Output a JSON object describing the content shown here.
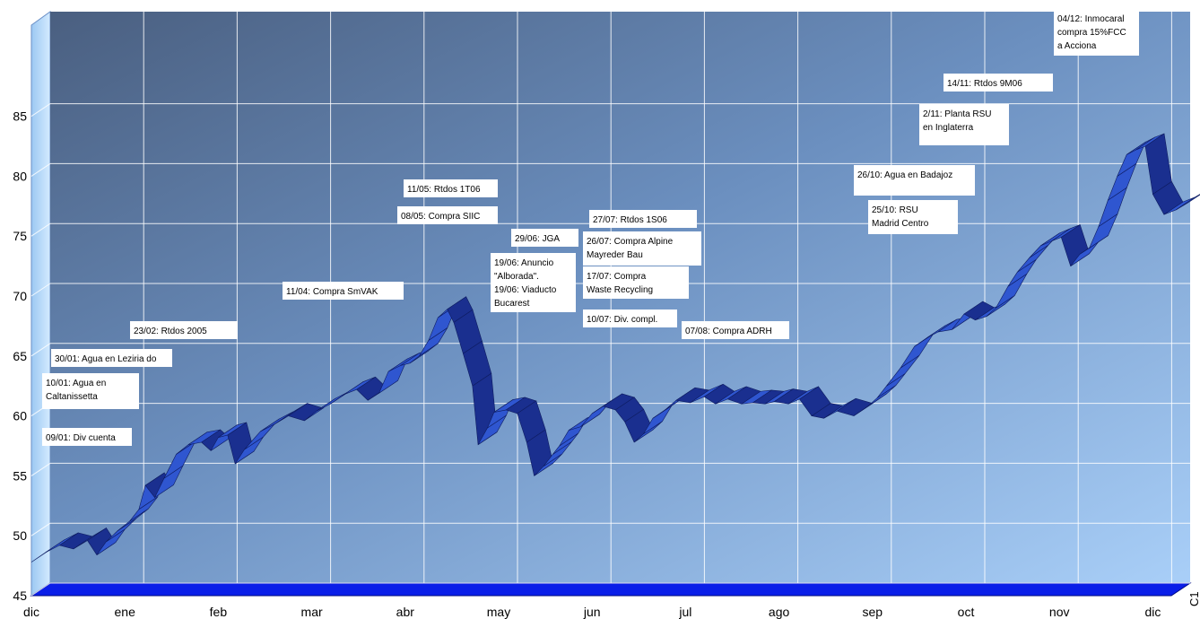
{
  "chart_data": {
    "type": "line",
    "title": "",
    "xlabel": "",
    "ylabel": "",
    "x_ticks": [
      "dic",
      "ene",
      "feb",
      "mar",
      "abr",
      "may",
      "jun",
      "jul",
      "ago",
      "sep",
      "oct",
      "nov",
      "dic"
    ],
    "y_ticks": [
      45,
      50,
      55,
      60,
      65,
      70,
      75,
      80,
      85
    ],
    "ylim": [
      45,
      85
    ],
    "grid": true,
    "series": [
      {
        "name": "C1",
        "color": "#2a4fc4",
        "points": [
          [
            0.0,
            47.8
          ],
          [
            0.15,
            48.6
          ],
          [
            0.3,
            49.2
          ],
          [
            0.45,
            48.9
          ],
          [
            0.6,
            49.6
          ],
          [
            0.7,
            48.4
          ],
          [
            0.8,
            49.5
          ],
          [
            0.92,
            50.4
          ],
          [
            1.05,
            51.2
          ],
          [
            1.15,
            52.2
          ],
          [
            1.22,
            54.2
          ],
          [
            1.32,
            53.2
          ],
          [
            1.42,
            54.8
          ],
          [
            1.55,
            56.8
          ],
          [
            1.68,
            57.6
          ],
          [
            1.82,
            57.8
          ],
          [
            1.92,
            57.1
          ],
          [
            2.0,
            58.2
          ],
          [
            2.1,
            58.4
          ],
          [
            2.18,
            56.0
          ],
          [
            2.28,
            57.2
          ],
          [
            2.45,
            58.7
          ],
          [
            2.6,
            59.3
          ],
          [
            2.75,
            60.0
          ],
          [
            2.92,
            59.6
          ],
          [
            3.05,
            60.4
          ],
          [
            3.2,
            61.0
          ],
          [
            3.35,
            61.8
          ],
          [
            3.48,
            62.2
          ],
          [
            3.6,
            61.3
          ],
          [
            3.72,
            61.9
          ],
          [
            3.82,
            63.7
          ],
          [
            3.95,
            64.2
          ],
          [
            4.05,
            64.4
          ],
          [
            4.15,
            65.0
          ],
          [
            4.25,
            66.3
          ],
          [
            4.35,
            68.2
          ],
          [
            4.45,
            68.9
          ],
          [
            4.52,
            67.8
          ],
          [
            4.62,
            65.2
          ],
          [
            4.72,
            62.5
          ],
          [
            4.78,
            57.6
          ],
          [
            4.88,
            59.0
          ],
          [
            4.95,
            60.3
          ],
          [
            5.08,
            60.5
          ],
          [
            5.2,
            60.2
          ],
          [
            5.3,
            57.8
          ],
          [
            5.38,
            55.0
          ],
          [
            5.48,
            55.8
          ],
          [
            5.58,
            56.8
          ],
          [
            5.65,
            57.5
          ],
          [
            5.75,
            58.8
          ],
          [
            5.88,
            59.1
          ],
          [
            6.0,
            60.2
          ],
          [
            6.12,
            60.8
          ],
          [
            6.25,
            60.5
          ],
          [
            6.35,
            59.5
          ],
          [
            6.45,
            57.8
          ],
          [
            6.55,
            58.5
          ],
          [
            6.65,
            59.8
          ],
          [
            6.78,
            60.5
          ],
          [
            6.9,
            61.3
          ],
          [
            7.05,
            61.1
          ],
          [
            7.2,
            61.6
          ],
          [
            7.32,
            61.0
          ],
          [
            7.45,
            61.4
          ],
          [
            7.6,
            61.0
          ],
          [
            7.72,
            61.1
          ],
          [
            7.85,
            61.0
          ],
          [
            7.95,
            61.2
          ],
          [
            8.1,
            61.0
          ],
          [
            8.22,
            61.4
          ],
          [
            8.35,
            60.0
          ],
          [
            8.48,
            59.8
          ],
          [
            8.62,
            60.4
          ],
          [
            8.8,
            60.0
          ],
          [
            8.95,
            60.8
          ],
          [
            9.05,
            61.5
          ],
          [
            9.15,
            62.5
          ],
          [
            9.3,
            64.0
          ],
          [
            9.45,
            65.8
          ],
          [
            9.58,
            66.5
          ],
          [
            9.7,
            67.0
          ],
          [
            9.85,
            67.2
          ],
          [
            9.98,
            68.5
          ],
          [
            10.1,
            68.0
          ],
          [
            10.22,
            68.3
          ],
          [
            10.32,
            69.0
          ],
          [
            10.45,
            70.8
          ],
          [
            10.55,
            72.0
          ],
          [
            10.68,
            73.2
          ],
          [
            10.8,
            74.2
          ],
          [
            10.92,
            74.6
          ],
          [
            11.02,
            74.9
          ],
          [
            11.12,
            72.5
          ],
          [
            11.22,
            73.5
          ],
          [
            11.32,
            74.0
          ],
          [
            11.42,
            75.8
          ],
          [
            11.52,
            78.0
          ],
          [
            11.62,
            80.0
          ],
          [
            11.72,
            81.8
          ],
          [
            11.82,
            82.2
          ],
          [
            11.92,
            82.5
          ],
          [
            12.0,
            78.5
          ],
          [
            12.12,
            76.8
          ],
          [
            12.25,
            77.2
          ],
          [
            12.38,
            77.8
          ]
        ]
      }
    ],
    "annotations": [
      {
        "lines": [
          "09/01: Div cuenta"
        ]
      },
      {
        "lines": [
          "10/01:  Agua en",
          "Caltanissetta"
        ]
      },
      {
        "lines": [
          "30/01: Agua en Leziria do"
        ]
      },
      {
        "lines": [
          "23/02: Rtdos 2005"
        ]
      },
      {
        "lines": [
          "11/04: Compra SmVAK"
        ]
      },
      {
        "lines": [
          "11/05: Rtdos 1T06"
        ]
      },
      {
        "lines": [
          "08/05: Compra SIIC"
        ]
      },
      {
        "lines": [
          "29/06: JGA"
        ]
      },
      {
        "lines": [
          "19/06: Anuncio",
          "\"Alborada\".",
          "19/06: Viaducto",
          "Bucarest"
        ]
      },
      {
        "lines": [
          "27/07: Rtdos 1S06"
        ]
      },
      {
        "lines": [
          "26/07: Compra Alpine",
          "Mayreder Bau"
        ]
      },
      {
        "lines": [
          "17/07: Compra",
          "Waste Recycling"
        ]
      },
      {
        "lines": [
          "10/07: Div. compl."
        ]
      },
      {
        "lines": [
          "07/08: Compra ADRH"
        ]
      },
      {
        "lines": [
          "26/10: Agua en Badajoz"
        ]
      },
      {
        "lines": [
          "25/10: RSU",
          "Madrid Centro"
        ]
      },
      {
        "lines": [
          "2/11: Planta RSU",
          "en Inglaterra"
        ]
      },
      {
        "lines": [
          "14/11: Rtdos 9M06"
        ]
      },
      {
        "lines": [
          "04/12: Inmocaral",
          "compra 15%FCC",
          "a Acciona"
        ]
      }
    ]
  }
}
